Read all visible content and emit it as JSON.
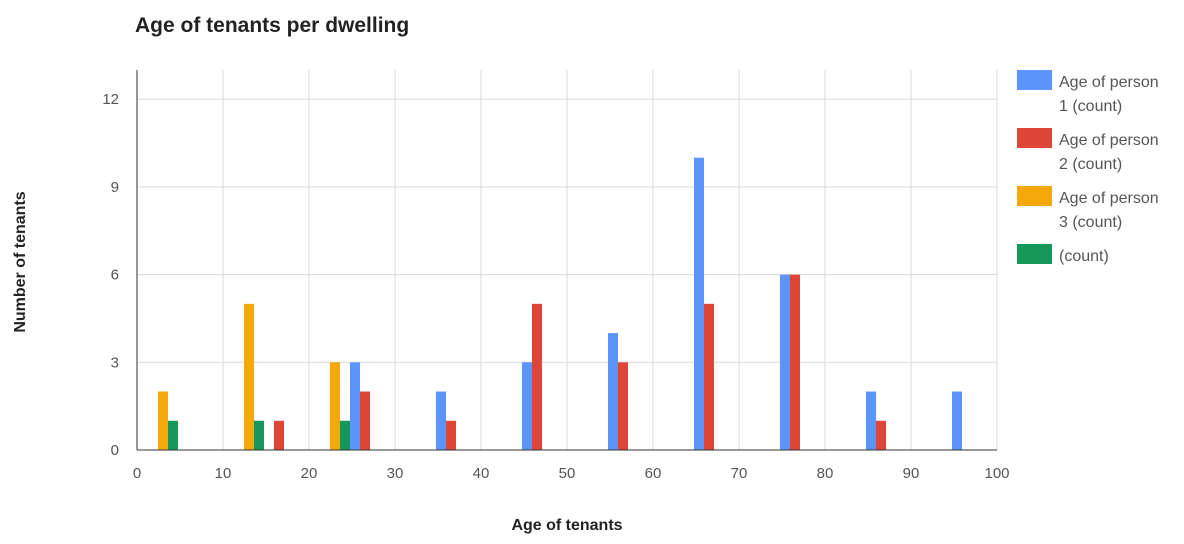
{
  "chart_data": {
    "type": "bar",
    "title": "Age of tenants per dwelling",
    "xlabel": "Age of tenants",
    "ylabel": "Number of tenants",
    "xlim": [
      0,
      100
    ],
    "ylim": [
      0,
      13
    ],
    "x_ticks": [
      "0",
      "10",
      "20",
      "30",
      "40",
      "50",
      "60",
      "70",
      "80",
      "90",
      "100"
    ],
    "y_ticks": [
      "0",
      "3",
      "6",
      "9",
      "12"
    ],
    "grid": true,
    "legend_position": "right",
    "series": [
      {
        "name": "Age of person 1 (count)",
        "color": "#5b95f9",
        "x": [
          20,
          30,
          40,
          50,
          60,
          70,
          80,
          90
        ],
        "values": [
          3,
          2,
          3,
          4,
          10,
          6,
          2,
          2
        ]
      },
      {
        "name": "Age of person 2 (count)",
        "color": "#de4637",
        "x": [
          10,
          20,
          30,
          40,
          50,
          60,
          70,
          80
        ],
        "values": [
          1,
          2,
          1,
          5,
          3,
          5,
          6,
          1
        ]
      },
      {
        "name": "Age of person 3 (count)",
        "color": "#f4a80c",
        "x": [
          0,
          10,
          20
        ],
        "values": [
          2,
          5,
          3
        ]
      },
      {
        "name": "(count)",
        "color": "#16985b",
        "x": [
          0,
          10,
          20
        ],
        "values": [
          1,
          1,
          1
        ]
      }
    ],
    "legend": [
      {
        "line1": "Age of person",
        "line2": "1 (count)"
      },
      {
        "line1": "Age of person",
        "line2": "2 (count)"
      },
      {
        "line1": "Age of person",
        "line2": "3 (count)"
      },
      {
        "line1": "(count)",
        "line2": ""
      }
    ]
  }
}
